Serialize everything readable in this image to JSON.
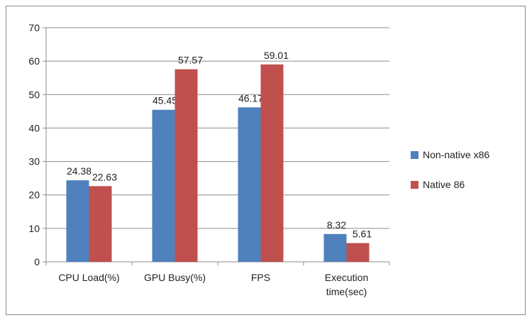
{
  "chart_data": {
    "type": "bar",
    "categories": [
      "CPU Load(%)",
      "GPU Busy(%)",
      "FPS",
      "Execution time(sec)"
    ],
    "category_lines": [
      [
        "CPU Load(%)"
      ],
      [
        "GPU Busy(%)"
      ],
      [
        "FPS"
      ],
      [
        "Execution",
        "time(sec)"
      ]
    ],
    "series": [
      {
        "name": "Non-native x86",
        "values": [
          24.38,
          45.45,
          46.17,
          8.32
        ],
        "color": "#4f81bd"
      },
      {
        "name": "Native 86",
        "values": [
          22.63,
          57.57,
          59.01,
          5.61
        ],
        "color": "#c0504d"
      }
    ],
    "value_labels": [
      [
        "24.38",
        "22.63"
      ],
      [
        "45.45",
        "57.57"
      ],
      [
        "46.17",
        "59.01"
      ],
      [
        "8.32",
        "5.61"
      ]
    ],
    "title": "",
    "xlabel": "",
    "ylabel": "",
    "ylim": [
      0,
      70
    ],
    "yticks": [
      0,
      10,
      20,
      30,
      40,
      50,
      60,
      70
    ],
    "grid": true,
    "legend_position": "right"
  }
}
